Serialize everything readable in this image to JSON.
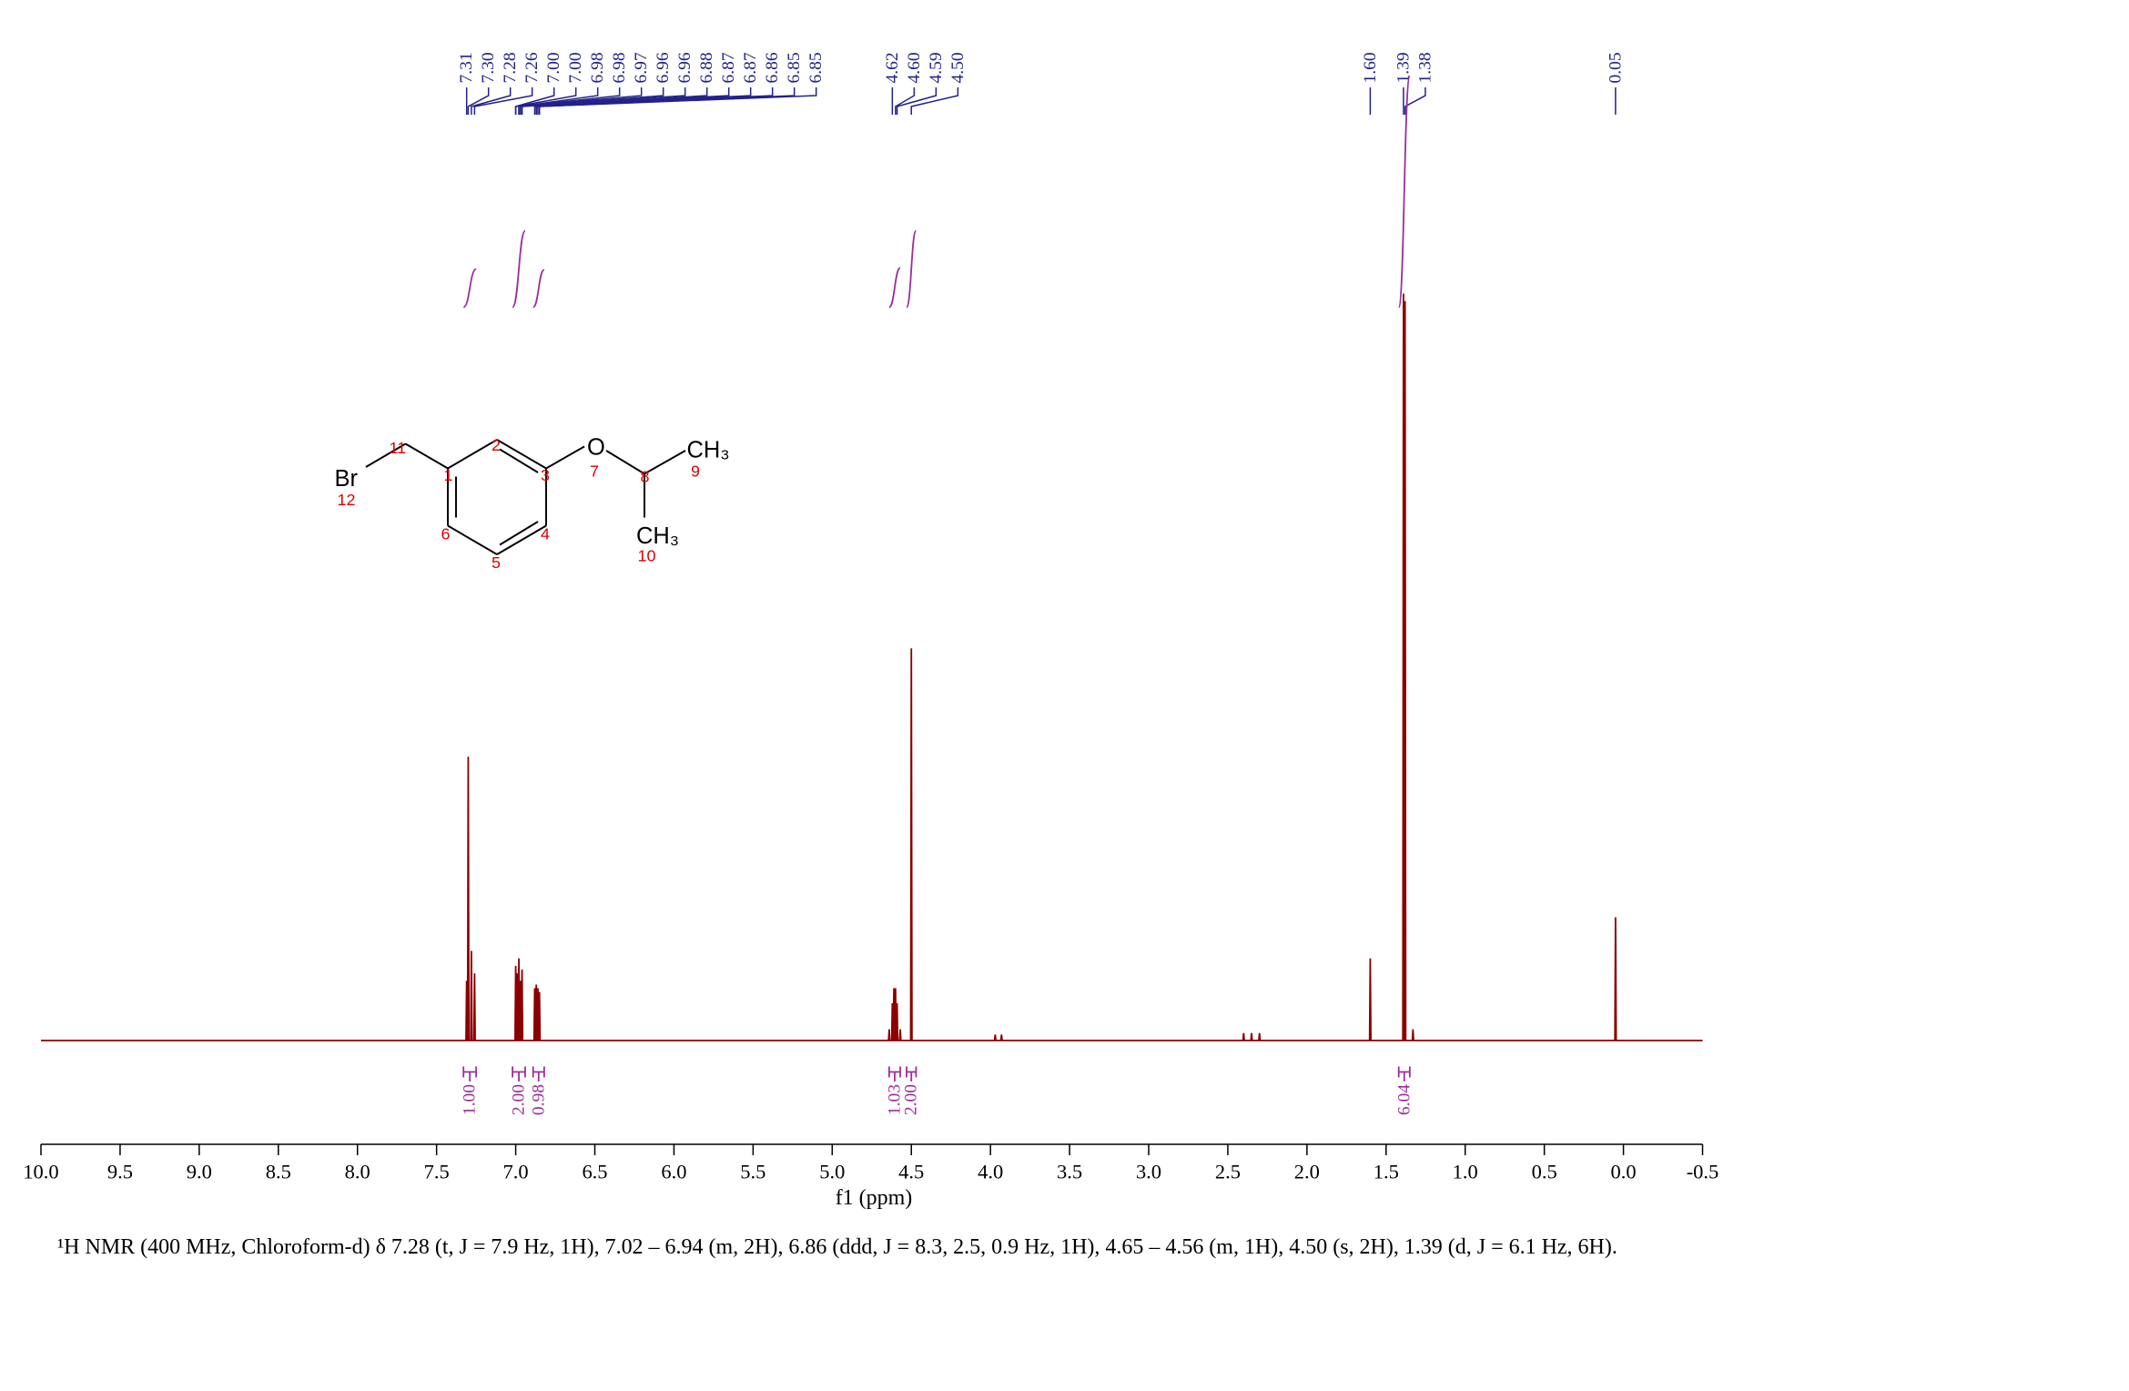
{
  "chart_data": {
    "type": "line",
    "xlabel": "f1 (ppm)",
    "xlim": [
      10,
      -0.5
    ],
    "ylim": [
      0,
      100
    ],
    "xticks": [
      {
        "value": 10,
        "label": "10.0"
      },
      9.5,
      {
        "value": 9,
        "label": "9.0"
      },
      8.5,
      {
        "value": 8,
        "label": "8.0"
      },
      7.5,
      {
        "value": 7,
        "label": "7.0"
      },
      6.5,
      {
        "value": 6,
        "label": "6.0"
      },
      5.5,
      {
        "value": 5,
        "label": "5.0"
      },
      4.5,
      {
        "value": 4,
        "label": "4.0"
      },
      3.5,
      {
        "value": 3,
        "label": "3.0"
      },
      2.5,
      {
        "value": 2,
        "label": "2.0"
      },
      1.5,
      {
        "value": 1,
        "label": "1.0"
      },
      0.5,
      {
        "value": 0,
        "label": "0.0"
      },
      -0.5
    ],
    "color": "#8b0000",
    "x": [
      10,
      7.314,
      7.31,
      7.306,
      7.304,
      7.3,
      7.296,
      7.284,
      7.28,
      7.276,
      7.264,
      7.26,
      7.256,
      7.004,
      7.0,
      6.996,
      6.994,
      6.99,
      6.986,
      6.984,
      6.98,
      6.976,
      6.974,
      6.97,
      6.966,
      6.964,
      6.96,
      6.956,
      6.884,
      6.88,
      6.876,
      6.874,
      6.87,
      6.866,
      6.864,
      6.86,
      6.856,
      6.854,
      6.85,
      6.846,
      4.644,
      4.64,
      4.636,
      4.624,
      4.62,
      4.616,
      4.614,
      4.61,
      4.606,
      4.604,
      4.6,
      4.596,
      4.594,
      4.59,
      4.586,
      4.574,
      4.57,
      4.566,
      4.504,
      4.5,
      4.496,
      3.974,
      3.97,
      3.966,
      3.934,
      3.93,
      3.926,
      2.404,
      2.4,
      2.396,
      2.354,
      2.35,
      2.346,
      2.304,
      2.3,
      2.296,
      1.604,
      1.6,
      1.596,
      1.394,
      1.39,
      1.386,
      1.384,
      1.38,
      1.376,
      1.334,
      1.33,
      1.326,
      0.054,
      0.05,
      0.046,
      -0.5
    ],
    "values": [
      0,
      0,
      8,
      0,
      0,
      38,
      0,
      0,
      12,
      0,
      0,
      9,
      0,
      0,
      10,
      0,
      0,
      9,
      0,
      0,
      11,
      0,
      0,
      8,
      0,
      0,
      9.5,
      0,
      0,
      7,
      0,
      0,
      7.5,
      0,
      0,
      7,
      0,
      0,
      6.5,
      0,
      0,
      1.5,
      0,
      0,
      5,
      0,
      0,
      7,
      0,
      0,
      7,
      0,
      0,
      5,
      0,
      0,
      1.5,
      0,
      0,
      52.5,
      0,
      0,
      0.8,
      0,
      0,
      0.8,
      0,
      0,
      1,
      0,
      0,
      1,
      0,
      0,
      1,
      0,
      0,
      11,
      0,
      0,
      100,
      0,
      0,
      99,
      0,
      0,
      1.5,
      0,
      0,
      16.5,
      0,
      0
    ],
    "peak_color": "#22228a",
    "peak_labels": [
      7.31,
      {
        "value": 7.3,
        "label": "7.30"
      },
      7.28,
      7.26,
      {
        "value": 7,
        "label": "7.00"
      },
      {
        "value": 7,
        "label": "7.00"
      },
      6.98,
      6.98,
      6.97,
      6.96,
      6.96,
      6.88,
      6.87,
      6.87,
      6.86,
      6.85,
      6.85,
      4.62,
      {
        "value": 4.6,
        "label": "4.60"
      },
      4.59,
      {
        "value": 4.5,
        "label": "4.50"
      },
      {
        "value": 1.6,
        "label": "1.60"
      },
      1.39,
      1.38,
      0.05
    ],
    "integrals": {
      "color": "#9b2f9b",
      "ranges": [
        [
          7.33,
          7.25
        ],
        [
          7.02,
          6.94
        ],
        [
          6.89,
          6.82
        ],
        [
          4.64,
          4.57
        ],
        [
          4.53,
          4.47
        ],
        [
          1.42,
          1.35
        ]
      ],
      "values": [
        1,
        2,
        0.98,
        1.03,
        2,
        6.04
      ],
      "value_labels": [
        "1.00",
        "2.00",
        "0.98",
        "1.03",
        "2.00",
        "6.04"
      ]
    },
    "annotations": [
      "Br",
      "12",
      "11",
      "1",
      "2",
      "3",
      "O",
      "7",
      "8",
      "CH₃",
      "9",
      "CH₃",
      "10",
      "4",
      "5",
      "6"
    ],
    "caption": "¹H NMR (400 MHz, Chloroform-d) δ 7.28 (t, J = 7.9 Hz, 1H), 7.02 – 6.94 (m, 2H), 6.86 (ddd, J = 8.3, 2.5, 0.9 Hz, 1H), 4.65 – 4.56 (m, 1H), 4.50 (s, 2H), 1.39 (d, J = 6.1 Hz, 6H)."
  }
}
